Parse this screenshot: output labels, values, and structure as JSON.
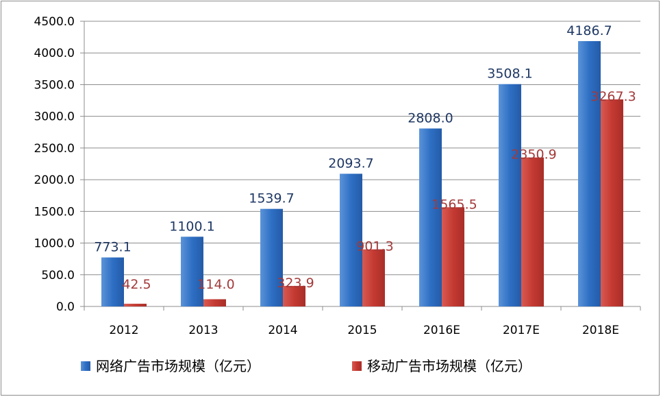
{
  "chart_data": {
    "type": "bar",
    "categories": [
      "2012",
      "2013",
      "2014",
      "2015",
      "2016E",
      "2017E",
      "2018E"
    ],
    "series": [
      {
        "name": "网络广告市场规模（亿元）",
        "values": [
          773.1,
          1100.1,
          1539.7,
          2093.7,
          2808.0,
          3508.1,
          4186.7
        ],
        "labels": [
          "773.1",
          "1100.1",
          "1539.7",
          "2093.7",
          "2808.0",
          "3508.1",
          "4186.7"
        ],
        "color": "#2e6fc4"
      },
      {
        "name": "移动广告市场规模（亿元）",
        "values": [
          42.5,
          114.0,
          323.9,
          901.3,
          1565.5,
          2350.9,
          3267.3
        ],
        "labels": [
          "42.5",
          "114.0",
          "323.9",
          "901.3",
          "1565.5",
          "2350.9",
          "3267.3"
        ],
        "color": "#c43a32"
      }
    ],
    "ylim": [
      0,
      4500
    ],
    "yticks": [
      "0.0",
      "500.0",
      "1000.0",
      "1500.0",
      "2000.0",
      "2500.0",
      "3000.0",
      "3500.0",
      "4000.0",
      "4500.0"
    ],
    "legend_position": "bottom",
    "grid": "horizontal"
  }
}
